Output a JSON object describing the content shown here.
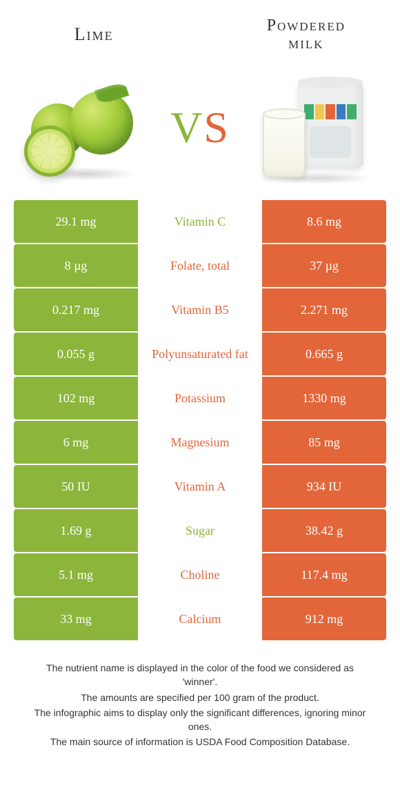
{
  "header": {
    "left_title": "Lime",
    "right_title_line1": "Powdered",
    "right_title_line2": "milk",
    "vs_v": "V",
    "vs_s": "S"
  },
  "colors": {
    "left": "#8bb63b",
    "right": "#e2663a",
    "bg": "#ffffff"
  },
  "can_label_colors": [
    "#3fae6e",
    "#f2c84b",
    "#e2663a",
    "#3b7bbf",
    "#3fae6e"
  ],
  "nutrients": [
    {
      "name": "Vitamin C",
      "left": "29.1 mg",
      "right": "8.6 mg",
      "winner": "left"
    },
    {
      "name": "Folate, total",
      "left": "8 µg",
      "right": "37 µg",
      "winner": "right"
    },
    {
      "name": "Vitamin B5",
      "left": "0.217 mg",
      "right": "2.271 mg",
      "winner": "right"
    },
    {
      "name": "Polyunsaturated fat",
      "left": "0.055 g",
      "right": "0.665 g",
      "winner": "right"
    },
    {
      "name": "Potassium",
      "left": "102 mg",
      "right": "1330 mg",
      "winner": "right"
    },
    {
      "name": "Magnesium",
      "left": "6 mg",
      "right": "85 mg",
      "winner": "right"
    },
    {
      "name": "Vitamin A",
      "left": "50 IU",
      "right": "934 IU",
      "winner": "right"
    },
    {
      "name": "Sugar",
      "left": "1.69 g",
      "right": "38.42 g",
      "winner": "left"
    },
    {
      "name": "Choline",
      "left": "5.1 mg",
      "right": "117.4 mg",
      "winner": "right"
    },
    {
      "name": "Calcium",
      "left": "33 mg",
      "right": "912 mg",
      "winner": "right"
    }
  ],
  "footer": {
    "l1": "The nutrient name is displayed in the color of the food we considered as 'winner'.",
    "l2": "The amounts are specified per 100 gram of the product.",
    "l3": "The infographic aims to display only the significant differences, ignoring minor ones.",
    "l4": "The main source of information is USDA Food Composition Database."
  }
}
